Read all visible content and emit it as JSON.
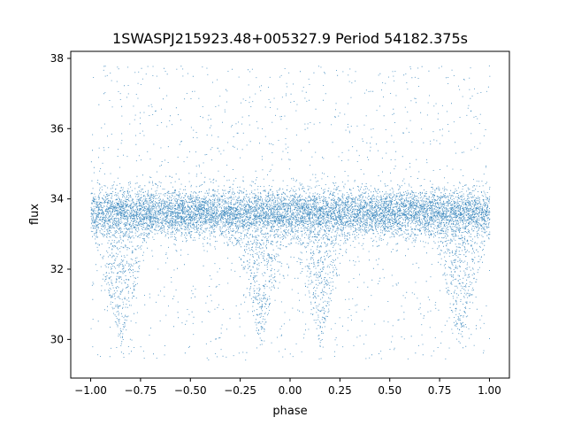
{
  "chart_data": {
    "type": "scatter",
    "title": "1SWASPJ215923.48+005327.9 Period 54182.375s",
    "xlabel": "phase",
    "ylabel": "flux",
    "xlim": [
      -1.1,
      1.1
    ],
    "ylim": [
      28.9,
      38.2
    ],
    "x_ticks": [
      -1.0,
      -0.75,
      -0.5,
      -0.25,
      0.0,
      0.25,
      0.5,
      0.75,
      1.0
    ],
    "x_tick_labels": [
      "−1.00",
      "−0.75",
      "−0.50",
      "−0.25",
      "0.00",
      "0.25",
      "0.50",
      "0.75",
      "1.00"
    ],
    "y_ticks": [
      30,
      32,
      34,
      36,
      38
    ],
    "y_tick_labels": [
      "30",
      "32",
      "34",
      "36",
      "38"
    ],
    "grid": false,
    "legend": "none",
    "point_color": "#1f77b4",
    "series": [
      {
        "description_points": "phase-folded light curve, dense band",
        "x_range": [
          -1.0,
          1.0
        ],
        "band_center_flux": 33.6,
        "band_half_width_flux": 0.6,
        "outlier_flux_range": [
          29.4,
          37.8
        ],
        "dip_phases": [
          -0.85,
          -0.15,
          0.15,
          0.85
        ],
        "dip_min_flux": 29.8
      }
    ]
  }
}
